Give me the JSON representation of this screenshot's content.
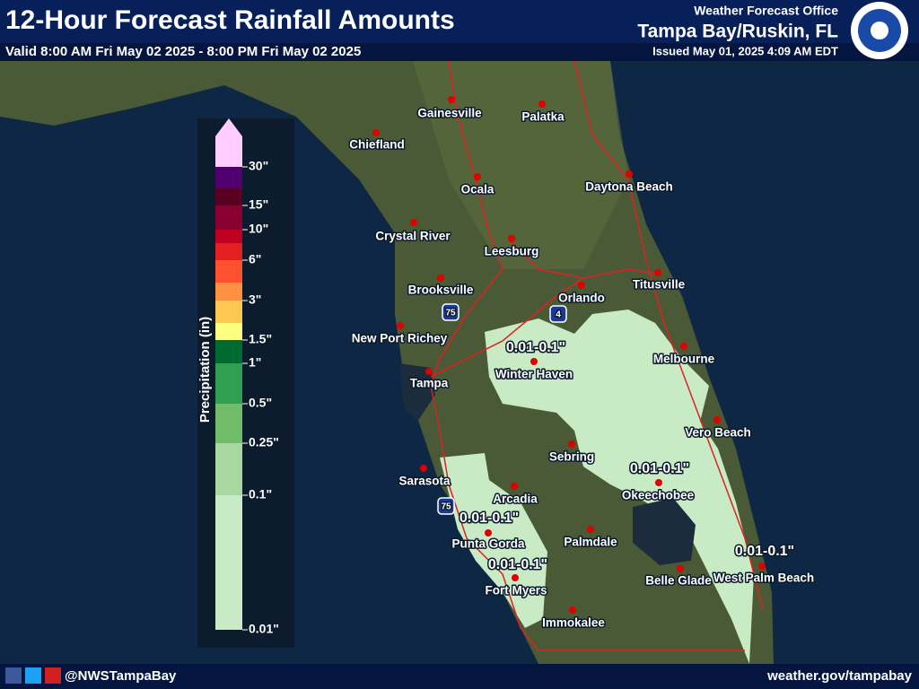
{
  "header": {
    "title": "12-Hour Forecast Rainfall Amounts",
    "valid": "Valid 8:00 AM Fri May 02 2025 - 8:00 PM Fri May 02 2025",
    "office": "Weather Forecast Office",
    "location": "Tampa Bay/Ruskin, FL",
    "issued": "Issued May 01, 2025 4:09 AM EDT"
  },
  "legend": {
    "title": "Precipitation (in)",
    "labels": [
      "0.01\"",
      "0.1\"",
      "0.25\"",
      "0.5\"",
      "1\"",
      "1.5\"",
      "3\"",
      "6\"",
      "10\"",
      "15\"",
      "30\""
    ]
  },
  "cities": [
    "Gainesville",
    "Palatka",
    "Chiefland",
    "Ocala",
    "Daytona Beach",
    "Crystal River",
    "Leesburg",
    "Brooksville",
    "Orlando",
    "Titusville",
    "New Port Richey",
    "Winter Haven",
    "Melbourne",
    "Tampa",
    "Vero Beach",
    "Sebring",
    "Sarasota",
    "Arcadia",
    "Okeechobee",
    "Punta Gorda",
    "Palmdale",
    "Fort Myers",
    "Belle Glade",
    "West Palm Beach",
    "Immokalee"
  ],
  "rain_labels": [
    "0.01-0.1\"",
    "0.01-0.1\"",
    "0.01-0.1\"",
    "0.01-0.1\"",
    "0.01-0.1\""
  ],
  "interstates": [
    "75",
    "4",
    "75"
  ],
  "footer": {
    "handle": "@NWSTampaBay",
    "url": "weather.gov/tampabay"
  }
}
